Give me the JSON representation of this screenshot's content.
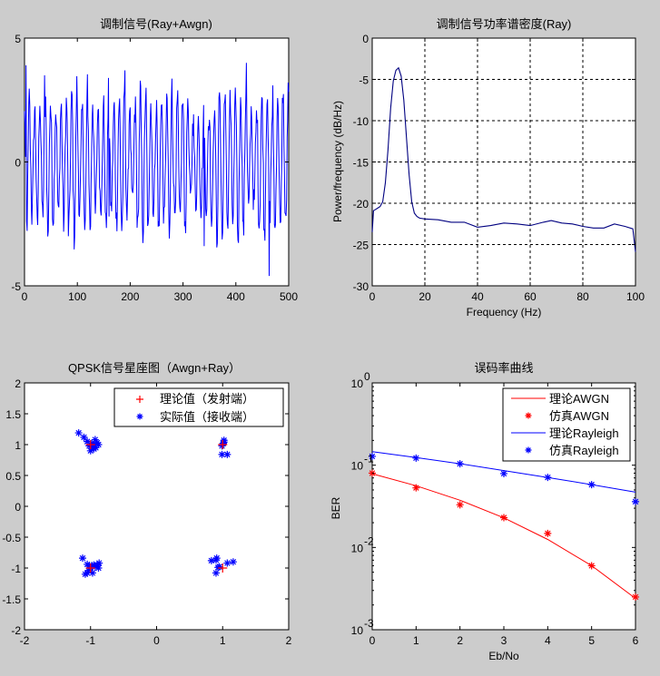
{
  "window": {
    "background": "#cccccc"
  },
  "chart_data": [
    {
      "id": "signal",
      "type": "line",
      "title": "调制信号(Ray+Awgn)",
      "xlabel": "",
      "ylabel": "",
      "xlim": [
        0,
        500
      ],
      "ylim": [
        -5,
        5
      ],
      "xticks": [
        0,
        100,
        200,
        300,
        400,
        500
      ],
      "yticks": [
        -5,
        0,
        5
      ],
      "grid": false,
      "color": "#0000ff",
      "n_samples": 500,
      "description": "noisy oscillating modulated signal, peaks ~+4, troughs ~-4.6",
      "extremes": [
        {
          "x": 3,
          "y": 3.9
        },
        {
          "x": 38,
          "y": 3.5
        },
        {
          "x": 45,
          "y": -2.8
        },
        {
          "x": 83,
          "y": -3.0
        },
        {
          "x": 160,
          "y": -2.2
        },
        {
          "x": 190,
          "y": 3.7
        },
        {
          "x": 340,
          "y": -3.4
        },
        {
          "x": 420,
          "y": 4.0
        },
        {
          "x": 463,
          "y": -4.6
        }
      ]
    },
    {
      "id": "psd",
      "type": "line",
      "title": "调制信号功率谱密度(Ray)",
      "xlabel": "Frequency (Hz)",
      "ylabel": "Power/frequency (dB/Hz)",
      "xlim": [
        0,
        100
      ],
      "ylim": [
        -30,
        0
      ],
      "xticks": [
        0,
        20,
        40,
        60,
        80,
        100
      ],
      "yticks": [
        0,
        -5,
        -10,
        -15,
        -20,
        -25,
        -30
      ],
      "grid": true,
      "color": "#000080",
      "x": [
        0,
        0.5,
        1,
        2,
        3,
        4,
        5,
        6,
        7,
        8,
        9,
        10,
        11,
        12,
        13,
        14,
        15,
        16,
        17,
        18,
        20,
        25,
        30,
        35,
        40,
        45,
        50,
        55,
        60,
        65,
        68,
        72,
        76,
        80,
        84,
        88,
        92,
        96,
        99,
        100
      ],
      "y": [
        -23.5,
        -20.9,
        -20.8,
        -20.6,
        -20.4,
        -19.8,
        -17.5,
        -13.5,
        -8.5,
        -5.2,
        -3.9,
        -3.6,
        -4.6,
        -7.5,
        -12.0,
        -16.5,
        -19.8,
        -21.2,
        -21.6,
        -21.8,
        -21.9,
        -22.0,
        -22.3,
        -22.3,
        -22.9,
        -22.7,
        -22.4,
        -22.5,
        -22.7,
        -22.3,
        -22.1,
        -22.4,
        -22.5,
        -22.8,
        -23.0,
        -23.0,
        -22.5,
        -22.8,
        -23.1,
        -25.9
      ]
    },
    {
      "id": "constellation",
      "type": "scatter",
      "title": "QPSK信号星座图（Awgn+Ray）",
      "xlabel": "",
      "ylabel": "",
      "xlim": [
        -2,
        2
      ],
      "ylim": [
        -2,
        2
      ],
      "xticks": [
        -2,
        -1,
        0,
        1,
        2
      ],
      "yticks": [
        -2,
        -1.5,
        -1,
        -0.5,
        0,
        0.5,
        1,
        1.5,
        2
      ],
      "ytick_labels": [
        "-2",
        "-1.5",
        "-1",
        "-0.5",
        "0",
        "0.5",
        "1",
        "1.5",
        "2"
      ],
      "grid": false,
      "legend_position": "northeast",
      "series": [
        {
          "name": "理论值（发射端）",
          "marker": "+",
          "color": "#ff0000",
          "points": [
            [
              -1,
              1
            ],
            [
              1,
              1
            ],
            [
              -1,
              -1
            ],
            [
              1,
              -1
            ]
          ]
        },
        {
          "name": "实际值（接收端）",
          "marker": "*",
          "color": "#0000ff",
          "points": [
            [
              -1.18,
              1.19
            ],
            [
              -1.1,
              1.12
            ],
            [
              -1.05,
              1.05
            ],
            [
              -0.98,
              1.02
            ],
            [
              -1.0,
              0.9
            ],
            [
              -0.95,
              1.0
            ],
            [
              -0.92,
              0.95
            ],
            [
              -0.88,
              1.0
            ],
            [
              -0.93,
              1.08
            ],
            [
              -0.97,
              0.97
            ],
            [
              -1.02,
              0.98
            ],
            [
              -0.9,
              1.03
            ],
            [
              -0.95,
              0.93
            ],
            [
              1.02,
              1.07
            ],
            [
              1.01,
              1.02
            ],
            [
              0.99,
              0.98
            ],
            [
              1.02,
              1.04
            ],
            [
              0.99,
              0.84
            ],
            [
              1.07,
              0.84
            ],
            [
              0.83,
              -0.88
            ],
            [
              0.9,
              -0.87
            ],
            [
              0.91,
              -0.84
            ],
            [
              0.93,
              -0.99
            ],
            [
              0.95,
              -0.98
            ],
            [
              0.9,
              -1.08
            ],
            [
              1.07,
              -0.92
            ],
            [
              1.16,
              -0.9
            ],
            [
              -1.12,
              -0.84
            ],
            [
              -1.05,
              -0.94
            ],
            [
              -1.02,
              -0.97
            ],
            [
              -0.98,
              -0.96
            ],
            [
              -0.95,
              -0.95
            ],
            [
              -0.9,
              -0.95
            ],
            [
              -0.87,
              -0.92
            ],
            [
              -0.88,
              -1.0
            ],
            [
              -1.0,
              -1.0
            ],
            [
              -1.05,
              -1.08
            ],
            [
              -1.08,
              -1.1
            ],
            [
              -0.97,
              -1.08
            ],
            [
              -1.03,
              -1.04
            ],
            [
              -0.93,
              -0.98
            ]
          ]
        }
      ]
    },
    {
      "id": "ber",
      "type": "line",
      "title": "误码率曲线",
      "xlabel": "Eb/No",
      "ylabel": "BER",
      "yscale": "log",
      "xlim": [
        0,
        6
      ],
      "ylim": [
        0.001,
        1
      ],
      "xticks": [
        0,
        1,
        2,
        3,
        4,
        5,
        6
      ],
      "yticks": [
        0.001,
        0.01,
        0.1,
        1
      ],
      "ytick_labels": [
        [
          "10",
          "-3"
        ],
        [
          "10",
          "-2"
        ],
        [
          "10",
          "-1"
        ],
        [
          "10",
          "0"
        ]
      ],
      "grid": false,
      "legend_position": "northeast",
      "categories": [
        0,
        1,
        2,
        3,
        4,
        5,
        6
      ],
      "series": [
        {
          "name": "理论AWGN",
          "style": "line",
          "color": "#ff0000",
          "values": [
            0.0786,
            0.0563,
            0.0375,
            0.0229,
            0.0125,
            0.006,
            0.0024
          ]
        },
        {
          "name": "仿真AWGN",
          "style": "marker",
          "marker": "*",
          "color": "#ff0000",
          "values": [
            0.08,
            0.053,
            0.033,
            0.023,
            0.0148,
            0.006,
            0.0025
          ]
        },
        {
          "name": "理论Rayleigh",
          "style": "line",
          "color": "#0000ff",
          "values": [
            0.146,
            0.124,
            0.104,
            0.086,
            0.071,
            0.058,
            0.047
          ]
        },
        {
          "name": "仿真Rayleigh",
          "style": "marker",
          "marker": "*",
          "color": "#0000ff",
          "values": [
            0.128,
            0.122,
            0.104,
            0.079,
            0.071,
            0.058,
            0.036
          ]
        }
      ]
    }
  ]
}
